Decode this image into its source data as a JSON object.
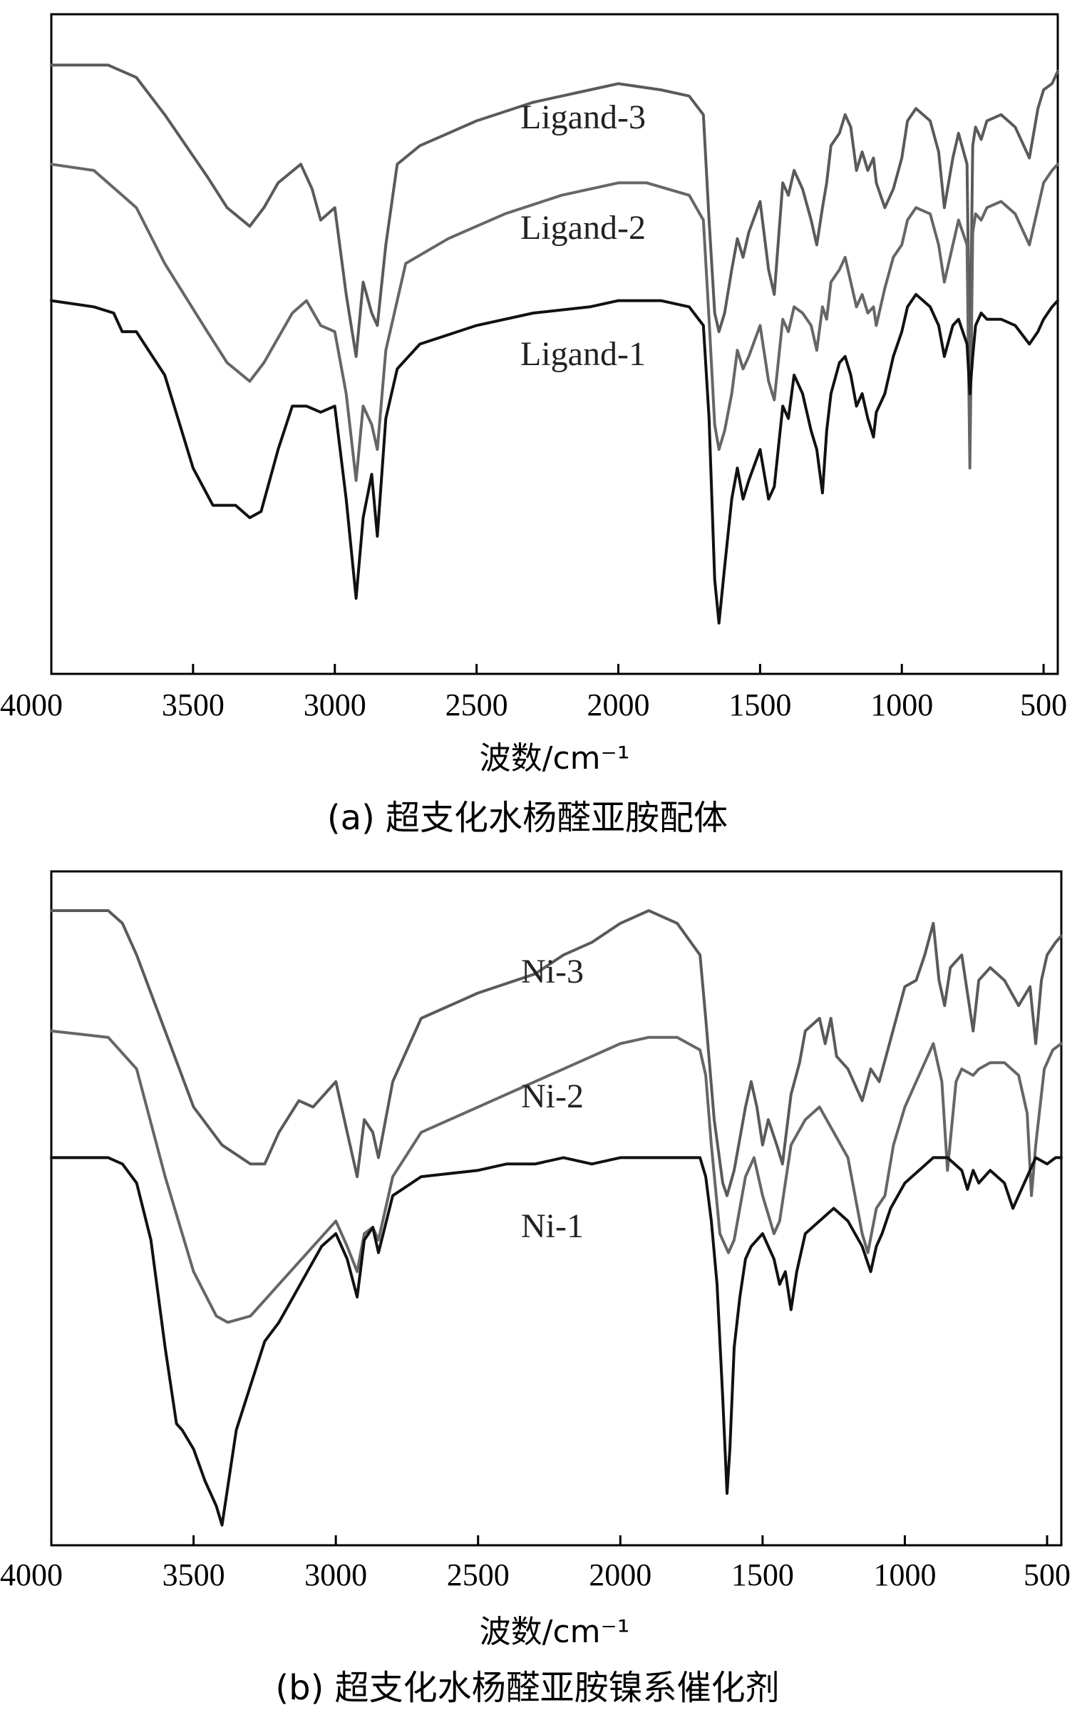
{
  "chart_data": [
    {
      "type": "line",
      "caption": "(a) 超支化水杨醛亚胺配体",
      "xlabel": "波数/cm⁻¹",
      "ylabel": "",
      "xlim": [
        4000,
        450
      ],
      "x_reversed": true,
      "y_ticks_shown": false,
      "grid": false,
      "xticks": [
        4000,
        3500,
        3000,
        2500,
        2000,
        1500,
        1000,
        500
      ],
      "xtick_labels": [
        "4000",
        "3500",
        "3000",
        "2500",
        "2000",
        "1500",
        "1000",
        "500"
      ],
      "ylim": [
        0,
        1
      ],
      "series": [
        {
          "name": "Ligand-3",
          "color": "#5a5a5a",
          "x": [
            4000,
            3800,
            3700,
            3600,
            3450,
            3380,
            3300,
            3250,
            3200,
            3120,
            3080,
            3050,
            3000,
            2960,
            2925,
            2900,
            2870,
            2850,
            2820,
            2780,
            2700,
            2500,
            2300,
            2100,
            2000,
            1850,
            1750,
            1700,
            1680,
            1660,
            1645,
            1625,
            1600,
            1580,
            1560,
            1540,
            1500,
            1470,
            1450,
            1420,
            1400,
            1380,
            1350,
            1320,
            1300,
            1280,
            1265,
            1250,
            1220,
            1200,
            1180,
            1160,
            1140,
            1120,
            1100,
            1090,
            1060,
            1030,
            1000,
            980,
            950,
            900,
            870,
            850,
            820,
            800,
            770,
            760,
            750,
            740,
            720,
            700,
            650,
            600,
            550,
            520,
            500,
            470,
            450
          ],
          "y": [
            0.95,
            0.95,
            0.93,
            0.87,
            0.77,
            0.72,
            0.69,
            0.72,
            0.76,
            0.79,
            0.75,
            0.7,
            0.72,
            0.58,
            0.48,
            0.6,
            0.55,
            0.53,
            0.66,
            0.79,
            0.82,
            0.86,
            0.89,
            0.91,
            0.92,
            0.91,
            0.9,
            0.87,
            0.7,
            0.55,
            0.52,
            0.55,
            0.62,
            0.67,
            0.64,
            0.68,
            0.73,
            0.62,
            0.58,
            0.76,
            0.74,
            0.78,
            0.75,
            0.7,
            0.66,
            0.72,
            0.76,
            0.82,
            0.84,
            0.87,
            0.85,
            0.78,
            0.81,
            0.78,
            0.8,
            0.76,
            0.72,
            0.75,
            0.8,
            0.86,
            0.88,
            0.86,
            0.81,
            0.72,
            0.8,
            0.84,
            0.79,
            0.45,
            0.82,
            0.85,
            0.83,
            0.86,
            0.87,
            0.85,
            0.8,
            0.88,
            0.91,
            0.92,
            0.94
          ]
        },
        {
          "name": "Ligand-2",
          "color": "#666666",
          "x": [
            4000,
            3850,
            3750,
            3700,
            3600,
            3450,
            3380,
            3300,
            3250,
            3150,
            3100,
            3050,
            3000,
            2960,
            2925,
            2900,
            2870,
            2850,
            2820,
            2750,
            2600,
            2400,
            2200,
            2000,
            1900,
            1750,
            1700,
            1680,
            1660,
            1645,
            1625,
            1600,
            1580,
            1560,
            1540,
            1500,
            1470,
            1450,
            1420,
            1400,
            1380,
            1350,
            1320,
            1300,
            1280,
            1265,
            1250,
            1220,
            1200,
            1180,
            1160,
            1140,
            1120,
            1100,
            1090,
            1060,
            1030,
            1000,
            980,
            950,
            900,
            870,
            850,
            820,
            800,
            770,
            760,
            750,
            740,
            720,
            700,
            650,
            600,
            550,
            520,
            500,
            470,
            450
          ],
          "y": [
            0.79,
            0.78,
            0.74,
            0.72,
            0.63,
            0.52,
            0.47,
            0.44,
            0.47,
            0.55,
            0.57,
            0.53,
            0.52,
            0.42,
            0.28,
            0.4,
            0.37,
            0.33,
            0.49,
            0.63,
            0.67,
            0.71,
            0.74,
            0.76,
            0.76,
            0.74,
            0.7,
            0.54,
            0.37,
            0.33,
            0.36,
            0.42,
            0.49,
            0.46,
            0.48,
            0.53,
            0.44,
            0.41,
            0.54,
            0.52,
            0.56,
            0.55,
            0.53,
            0.49,
            0.56,
            0.54,
            0.6,
            0.62,
            0.64,
            0.6,
            0.56,
            0.58,
            0.55,
            0.56,
            0.53,
            0.59,
            0.64,
            0.66,
            0.7,
            0.72,
            0.71,
            0.66,
            0.6,
            0.66,
            0.7,
            0.66,
            0.3,
            0.68,
            0.71,
            0.7,
            0.72,
            0.73,
            0.71,
            0.66,
            0.72,
            0.76,
            0.78,
            0.79
          ]
        },
        {
          "name": "Ligand-1",
          "color": "#111111",
          "x": [
            4000,
            3850,
            3780,
            3750,
            3700,
            3600,
            3500,
            3430,
            3350,
            3300,
            3260,
            3200,
            3150,
            3100,
            3050,
            3000,
            2960,
            2925,
            2900,
            2870,
            2850,
            2820,
            2780,
            2700,
            2500,
            2300,
            2100,
            2000,
            1850,
            1750,
            1700,
            1680,
            1660,
            1645,
            1625,
            1600,
            1580,
            1560,
            1540,
            1500,
            1470,
            1450,
            1420,
            1400,
            1380,
            1350,
            1320,
            1300,
            1280,
            1265,
            1250,
            1220,
            1200,
            1180,
            1160,
            1140,
            1120,
            1100,
            1090,
            1060,
            1030,
            1000,
            980,
            950,
            900,
            870,
            850,
            820,
            800,
            770,
            760,
            750,
            740,
            720,
            700,
            650,
            600,
            550,
            520,
            500,
            470,
            450
          ],
          "y": [
            0.57,
            0.56,
            0.55,
            0.52,
            0.52,
            0.45,
            0.3,
            0.24,
            0.24,
            0.22,
            0.23,
            0.33,
            0.4,
            0.4,
            0.39,
            0.4,
            0.25,
            0.09,
            0.22,
            0.29,
            0.19,
            0.38,
            0.46,
            0.5,
            0.53,
            0.55,
            0.56,
            0.57,
            0.57,
            0.56,
            0.53,
            0.38,
            0.12,
            0.05,
            0.14,
            0.25,
            0.3,
            0.25,
            0.28,
            0.33,
            0.25,
            0.27,
            0.4,
            0.38,
            0.45,
            0.42,
            0.36,
            0.33,
            0.26,
            0.36,
            0.42,
            0.47,
            0.48,
            0.45,
            0.4,
            0.42,
            0.38,
            0.35,
            0.39,
            0.42,
            0.48,
            0.52,
            0.56,
            0.58,
            0.56,
            0.53,
            0.48,
            0.53,
            0.54,
            0.5,
            0.42,
            0.48,
            0.53,
            0.55,
            0.54,
            0.54,
            0.53,
            0.5,
            0.52,
            0.54,
            0.56,
            0.57
          ]
        }
      ]
    },
    {
      "type": "line",
      "caption": "(b) 超支化水杨醛亚胺镍系催化剂",
      "xlabel": "波数/cm⁻¹",
      "ylabel": "",
      "xlim": [
        4000,
        450
      ],
      "x_reversed": true,
      "y_ticks_shown": false,
      "grid": false,
      "xticks": [
        4000,
        3500,
        3000,
        2500,
        2000,
        1500,
        1000,
        500
      ],
      "xtick_labels": [
        "4000",
        "3500",
        "3000",
        "2500",
        "2000",
        "1500",
        "1000",
        "500"
      ],
      "ylim": [
        0,
        1
      ],
      "series": [
        {
          "name": "Ni-3",
          "color": "#5a5a5a",
          "x": [
            4000,
            3800,
            3750,
            3700,
            3600,
            3500,
            3400,
            3300,
            3250,
            3200,
            3130,
            3080,
            3000,
            2960,
            2925,
            2900,
            2870,
            2850,
            2800,
            2700,
            2500,
            2300,
            2200,
            2100,
            2000,
            1900,
            1800,
            1720,
            1700,
            1670,
            1640,
            1625,
            1600,
            1560,
            1540,
            1520,
            1500,
            1480,
            1450,
            1430,
            1400,
            1370,
            1350,
            1300,
            1280,
            1260,
            1240,
            1200,
            1150,
            1120,
            1090,
            1060,
            1030,
            1000,
            960,
            930,
            900,
            880,
            860,
            840,
            800,
            760,
            740,
            700,
            650,
            600,
            560,
            540,
            520,
            500,
            470,
            450
          ],
          "y": [
            0.97,
            0.97,
            0.95,
            0.9,
            0.78,
            0.66,
            0.6,
            0.57,
            0.57,
            0.62,
            0.67,
            0.66,
            0.7,
            0.62,
            0.55,
            0.64,
            0.62,
            0.58,
            0.7,
            0.8,
            0.84,
            0.87,
            0.9,
            0.92,
            0.95,
            0.97,
            0.95,
            0.9,
            0.8,
            0.64,
            0.54,
            0.52,
            0.56,
            0.66,
            0.7,
            0.66,
            0.6,
            0.64,
            0.6,
            0.57,
            0.68,
            0.73,
            0.78,
            0.8,
            0.76,
            0.8,
            0.74,
            0.72,
            0.67,
            0.72,
            0.7,
            0.75,
            0.8,
            0.85,
            0.86,
            0.9,
            0.95,
            0.86,
            0.82,
            0.88,
            0.9,
            0.78,
            0.86,
            0.88,
            0.86,
            0.82,
            0.85,
            0.76,
            0.86,
            0.9,
            0.92,
            0.93
          ]
        },
        {
          "name": "Ni-2",
          "color": "#666666",
          "x": [
            4000,
            3800,
            3700,
            3600,
            3500,
            3420,
            3380,
            3300,
            3200,
            3100,
            3000,
            2960,
            2925,
            2900,
            2870,
            2850,
            2800,
            2700,
            2500,
            2300,
            2200,
            2100,
            2000,
            1900,
            1800,
            1720,
            1700,
            1680,
            1650,
            1620,
            1600,
            1560,
            1530,
            1500,
            1460,
            1440,
            1400,
            1350,
            1300,
            1250,
            1200,
            1150,
            1130,
            1100,
            1070,
            1040,
            1000,
            960,
            920,
            900,
            870,
            850,
            820,
            800,
            760,
            740,
            700,
            650,
            600,
            570,
            555,
            540,
            510,
            480,
            450
          ],
          "y": [
            0.78,
            0.77,
            0.72,
            0.55,
            0.4,
            0.33,
            0.32,
            0.33,
            0.38,
            0.43,
            0.48,
            0.44,
            0.4,
            0.46,
            0.47,
            0.45,
            0.55,
            0.62,
            0.66,
            0.7,
            0.72,
            0.74,
            0.76,
            0.77,
            0.77,
            0.75,
            0.71,
            0.6,
            0.46,
            0.43,
            0.45,
            0.55,
            0.58,
            0.52,
            0.46,
            0.48,
            0.6,
            0.64,
            0.66,
            0.62,
            0.58,
            0.46,
            0.43,
            0.5,
            0.52,
            0.6,
            0.66,
            0.7,
            0.74,
            0.76,
            0.7,
            0.56,
            0.7,
            0.72,
            0.71,
            0.72,
            0.73,
            0.73,
            0.71,
            0.65,
            0.52,
            0.6,
            0.72,
            0.75,
            0.76
          ]
        },
        {
          "name": "Ni-1",
          "color": "#111111",
          "x": [
            4000,
            3800,
            3750,
            3700,
            3650,
            3600,
            3560,
            3540,
            3500,
            3460,
            3440,
            3420,
            3400,
            3380,
            3350,
            3300,
            3250,
            3200,
            3150,
            3100,
            3050,
            3000,
            2960,
            2925,
            2900,
            2870,
            2850,
            2800,
            2700,
            2500,
            2400,
            2300,
            2200,
            2100,
            2000,
            1900,
            1800,
            1720,
            1700,
            1680,
            1660,
            1640,
            1625,
            1615,
            1600,
            1580,
            1560,
            1540,
            1500,
            1460,
            1440,
            1420,
            1400,
            1380,
            1350,
            1300,
            1250,
            1200,
            1150,
            1120,
            1100,
            1080,
            1050,
            1000,
            950,
            900,
            850,
            800,
            780,
            760,
            740,
            700,
            650,
            620,
            600,
            560,
            540,
            500,
            470,
            450
          ],
          "y": [
            0.58,
            0.58,
            0.57,
            0.54,
            0.45,
            0.28,
            0.16,
            0.15,
            0.12,
            0.07,
            0.05,
            0.03,
            0.0,
            0.06,
            0.15,
            0.22,
            0.29,
            0.32,
            0.36,
            0.4,
            0.44,
            0.46,
            0.42,
            0.36,
            0.45,
            0.47,
            0.43,
            0.52,
            0.55,
            0.56,
            0.57,
            0.57,
            0.58,
            0.57,
            0.58,
            0.58,
            0.58,
            0.58,
            0.55,
            0.48,
            0.38,
            0.2,
            0.05,
            0.12,
            0.28,
            0.36,
            0.42,
            0.44,
            0.46,
            0.42,
            0.38,
            0.4,
            0.34,
            0.4,
            0.46,
            0.48,
            0.5,
            0.48,
            0.44,
            0.4,
            0.44,
            0.46,
            0.5,
            0.54,
            0.56,
            0.58,
            0.58,
            0.56,
            0.53,
            0.56,
            0.54,
            0.56,
            0.54,
            0.5,
            0.52,
            0.56,
            0.58,
            0.57,
            0.58,
            0.58
          ]
        }
      ]
    }
  ]
}
